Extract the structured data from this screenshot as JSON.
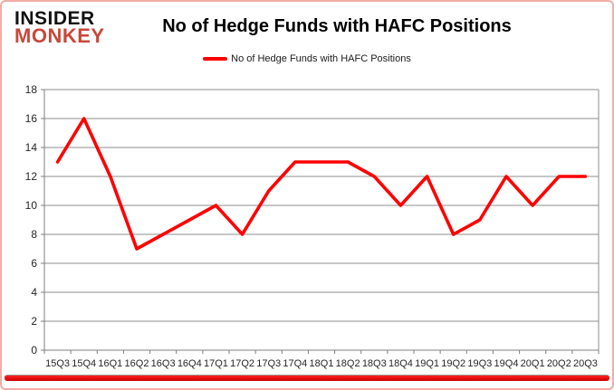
{
  "branding": {
    "logo_line1": "INSIDER",
    "logo_line2": "MONKEY"
  },
  "header": {
    "title": "No of Hedge Funds with HAFC Positions"
  },
  "legend": {
    "label": "No of Hedge Funds with HAFC Positions"
  },
  "chart_data": {
    "type": "line",
    "title": "No of Hedge Funds with HAFC Positions",
    "series": [
      {
        "name": "No of Hedge Funds with HAFC Positions",
        "values": [
          13,
          16,
          12,
          7,
          8,
          9,
          10,
          8,
          11,
          13,
          13,
          13,
          12,
          10,
          12,
          8,
          9,
          12,
          10,
          12,
          12
        ]
      }
    ],
    "categories": [
      "15Q3",
      "15Q4",
      "16Q1",
      "16Q2",
      "16Q3",
      "16Q4",
      "17Q1",
      "17Q2",
      "17Q3",
      "17Q4",
      "18Q1",
      "18Q2",
      "18Q3",
      "18Q4",
      "19Q1",
      "19Q2",
      "19Q3",
      "19Q4",
      "20Q1",
      "20Q2",
      "20Q3"
    ],
    "xlabel": "",
    "ylabel": "",
    "ylim": [
      0,
      18
    ],
    "y_ticks": [
      0,
      2,
      4,
      6,
      8,
      10,
      12,
      14,
      16,
      18
    ],
    "grid": true,
    "legend_position": "top-center"
  },
  "colors": {
    "series_line": "#fe0000",
    "legend_swatch": "#fe0000",
    "logo_red": "#c9473a",
    "gridline": "#8e8e8e",
    "axis": "#7f7f7f",
    "tick_text": "#262626",
    "frame_border_pink": "#f2aca4",
    "bottom_bar_top": "#ff2222",
    "bottom_bar_bottom": "#cc0000"
  }
}
